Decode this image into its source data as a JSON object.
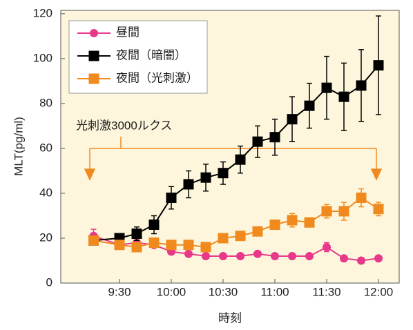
{
  "chart_data": {
    "type": "line",
    "title": null,
    "x": [
      555,
      570,
      580,
      590,
      600,
      610,
      620,
      630,
      640,
      650,
      660,
      670,
      680,
      690,
      700,
      710,
      720
    ],
    "xlim": [
      536,
      732
    ],
    "xticks": [
      {
        "value": 570,
        "label": "9:30"
      },
      {
        "value": 600,
        "label": "10:00"
      },
      {
        "value": 630,
        "label": "10:30"
      },
      {
        "value": 660,
        "label": "11:00"
      },
      {
        "value": 690,
        "label": "11:30"
      },
      {
        "value": 720,
        "label": "12:00"
      }
    ],
    "ylim": [
      0,
      121.5
    ],
    "yticks": [
      0,
      20,
      40,
      60,
      80,
      100,
      120
    ],
    "xlabel": "時刻",
    "ylabel": "MLT(pg/ml)",
    "annotation": "光刺激3000ルクス",
    "series": [
      {
        "name": "昼間",
        "color": "#e8388a",
        "marker": "circle",
        "values": [
          21,
          17,
          18,
          17,
          14,
          13,
          12,
          12,
          12,
          13,
          12,
          12,
          12,
          16,
          11,
          10,
          11
        ],
        "errors": [
          3,
          1,
          1,
          1,
          1,
          1,
          1,
          1,
          1,
          1,
          1,
          1,
          1,
          2,
          1,
          1,
          1
        ]
      },
      {
        "name": "夜間（暗闇）",
        "color": "#000000",
        "marker": "square",
        "values": [
          19,
          20,
          22,
          26,
          38,
          44,
          47,
          49,
          55,
          63,
          65,
          73,
          79,
          87,
          83,
          88,
          97
        ],
        "errors": [
          null,
          2,
          3,
          4,
          5,
          6,
          6,
          5,
          6,
          7,
          8,
          10,
          10,
          14,
          15,
          16,
          22
        ]
      },
      {
        "name": "夜間（光刺激）",
        "color": "#f08a1e",
        "marker": "square",
        "values": [
          19,
          17,
          16,
          18,
          17,
          17,
          16,
          20,
          21,
          23,
          26,
          28,
          27,
          32,
          32,
          38,
          33
        ],
        "errors": [
          null,
          2,
          2,
          2,
          2,
          1,
          2,
          2,
          2,
          2,
          2,
          3,
          2,
          3,
          4,
          4,
          3
        ]
      }
    ]
  }
}
